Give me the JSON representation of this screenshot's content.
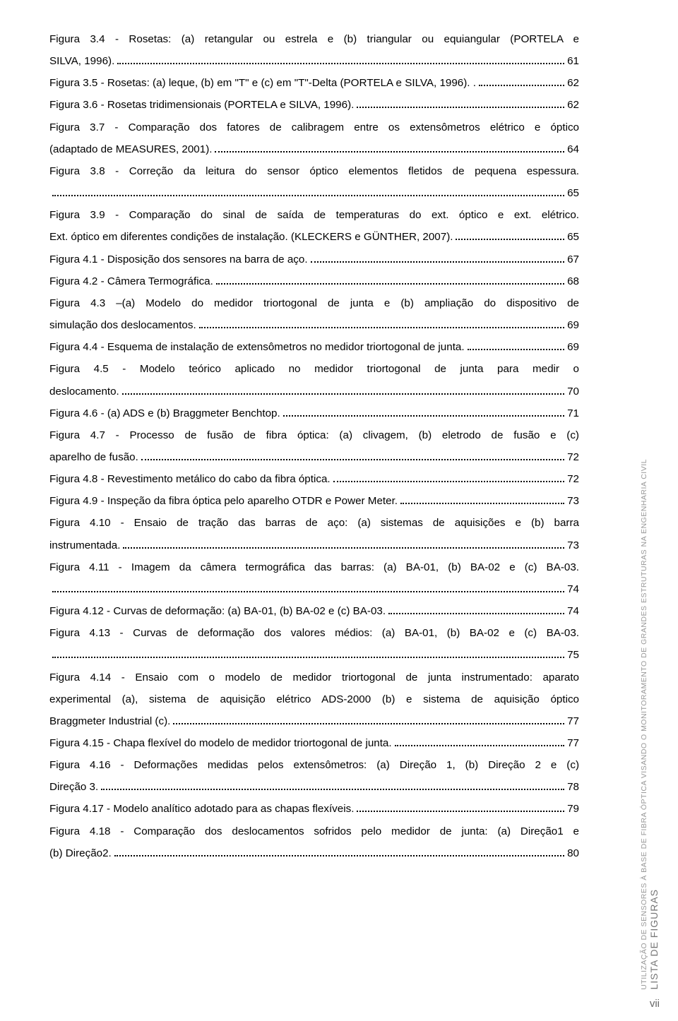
{
  "entries": [
    {
      "lines": [
        "Figura 3.4 - Rosetas: (a) retangular ou estrela e (b) triangular ou equiangular (PORTELA e"
      ],
      "last": "SILVA, 1996).",
      "page": "61"
    },
    {
      "lines": [],
      "last": "Figura 3.5 - Rosetas: (a) leque, (b) em \"T\" e (c) em \"T\"-Delta (PORTELA e SILVA, 1996). .",
      "page": "62"
    },
    {
      "lines": [],
      "last": "Figura 3.6 - Rosetas tridimensionais (PORTELA e SILVA, 1996).",
      "page": "62"
    },
    {
      "lines": [
        "Figura 3.7 - Comparação dos fatores de calibragem entre os extensômetros elétrico e óptico"
      ],
      "last": "(adaptado de MEASURES, 2001).",
      "page": "64"
    },
    {
      "lines": [
        "Figura 3.8 - Correção da leitura do sensor óptico elementos fletidos de pequena espessura."
      ],
      "last": "",
      "page": "65"
    },
    {
      "lines": [
        "Figura 3.9 - Comparação do sinal de saída de temperaturas do ext. óptico e ext. elétrico."
      ],
      "last": "Ext. óptico em diferentes condições de instalação. (KLECKERS e GÜNTHER, 2007).",
      "page": "65"
    },
    {
      "lines": [],
      "last": "Figura 4.1 - Disposição dos sensores na barra de aço.",
      "page": "67"
    },
    {
      "lines": [],
      "last": "Figura 4.2 - Câmera Termográfica.",
      "page": "68"
    },
    {
      "lines": [
        "Figura 4.3 –(a) Modelo do medidor triortogonal de junta e (b) ampliação do dispositivo de"
      ],
      "last": "simulação dos deslocamentos.",
      "page": "69"
    },
    {
      "lines": [],
      "last": "Figura 4.4 - Esquema de instalação de extensômetros no medidor triortogonal de junta.",
      "page": "69"
    },
    {
      "lines": [
        "Figura 4.5 - Modelo teórico aplicado no medidor triortogonal de junta para medir o"
      ],
      "last": "deslocamento.",
      "page": "70"
    },
    {
      "lines": [],
      "last": "Figura 4.6 - (a) ADS e (b) Braggmeter Benchtop.",
      "page": "71"
    },
    {
      "lines": [
        "Figura 4.7 - Processo de fusão de fibra óptica: (a) clivagem, (b) eletrodo de fusão e (c)"
      ],
      "last": "aparelho de fusão.",
      "page": "72"
    },
    {
      "lines": [],
      "last": "Figura 4.8 - Revestimento metálico do cabo da fibra óptica.",
      "page": "72"
    },
    {
      "lines": [],
      "last": "Figura 4.9 - Inspeção da fibra óptica pelo aparelho OTDR e Power Meter.",
      "page": "73"
    },
    {
      "lines": [
        "Figura 4.10 - Ensaio de tração das barras de aço: (a) sistemas de aquisições e (b) barra"
      ],
      "last": "instrumentada.",
      "page": "73"
    },
    {
      "lines": [
        "Figura 4.11 - Imagem da câmera termográfica das barras: (a) BA-01, (b) BA-02 e (c) BA-03."
      ],
      "last": "",
      "page": "74"
    },
    {
      "lines": [],
      "last": "Figura 4.12 - Curvas de deformação: (a) BA-01, (b) BA-02 e (c) BA-03.",
      "page": "74"
    },
    {
      "lines": [
        "Figura 4.13 - Curvas de deformação dos valores médios: (a) BA-01, (b) BA-02 e (c) BA-03."
      ],
      "last": "",
      "page": "75"
    },
    {
      "lines": [
        "Figura 4.14 - Ensaio com o modelo de medidor triortogonal de junta instrumentado: aparato",
        "experimental (a), sistema de aquisição elétrico ADS-2000 (b) e sistema de aquisição óptico"
      ],
      "last": "Braggmeter Industrial (c).",
      "page": "77"
    },
    {
      "lines": [],
      "last": "Figura 4.15 - Chapa flexível do modelo de medidor triortogonal de junta.",
      "page": "77"
    },
    {
      "lines": [
        "Figura 4.16 - Deformações medidas pelos extensômetros: (a) Direção 1, (b) Direção 2 e (c)"
      ],
      "last": "Direção 3.",
      "page": "78"
    },
    {
      "lines": [],
      "last": "Figura 4.17 - Modelo analítico adotado para as chapas flexíveis.",
      "page": "79"
    },
    {
      "lines": [
        "Figura 4.18 - Comparação dos deslocamentos sofridos pelo medidor de junta: (a) Direção1 e"
      ],
      "last": "(b) Direção2.",
      "page": "80"
    }
  ],
  "sideMain": "LISTA DE FIGURAS",
  "sideSub": "UTILIZAÇÃO DE SENSORES À BASE DE FIBRA ÓPTICA VISANDO O MONITORAMENTO DE GRANDES ESTRUTURAS NA ENGENHARIA CIVIL",
  "pageNumber": "vii"
}
